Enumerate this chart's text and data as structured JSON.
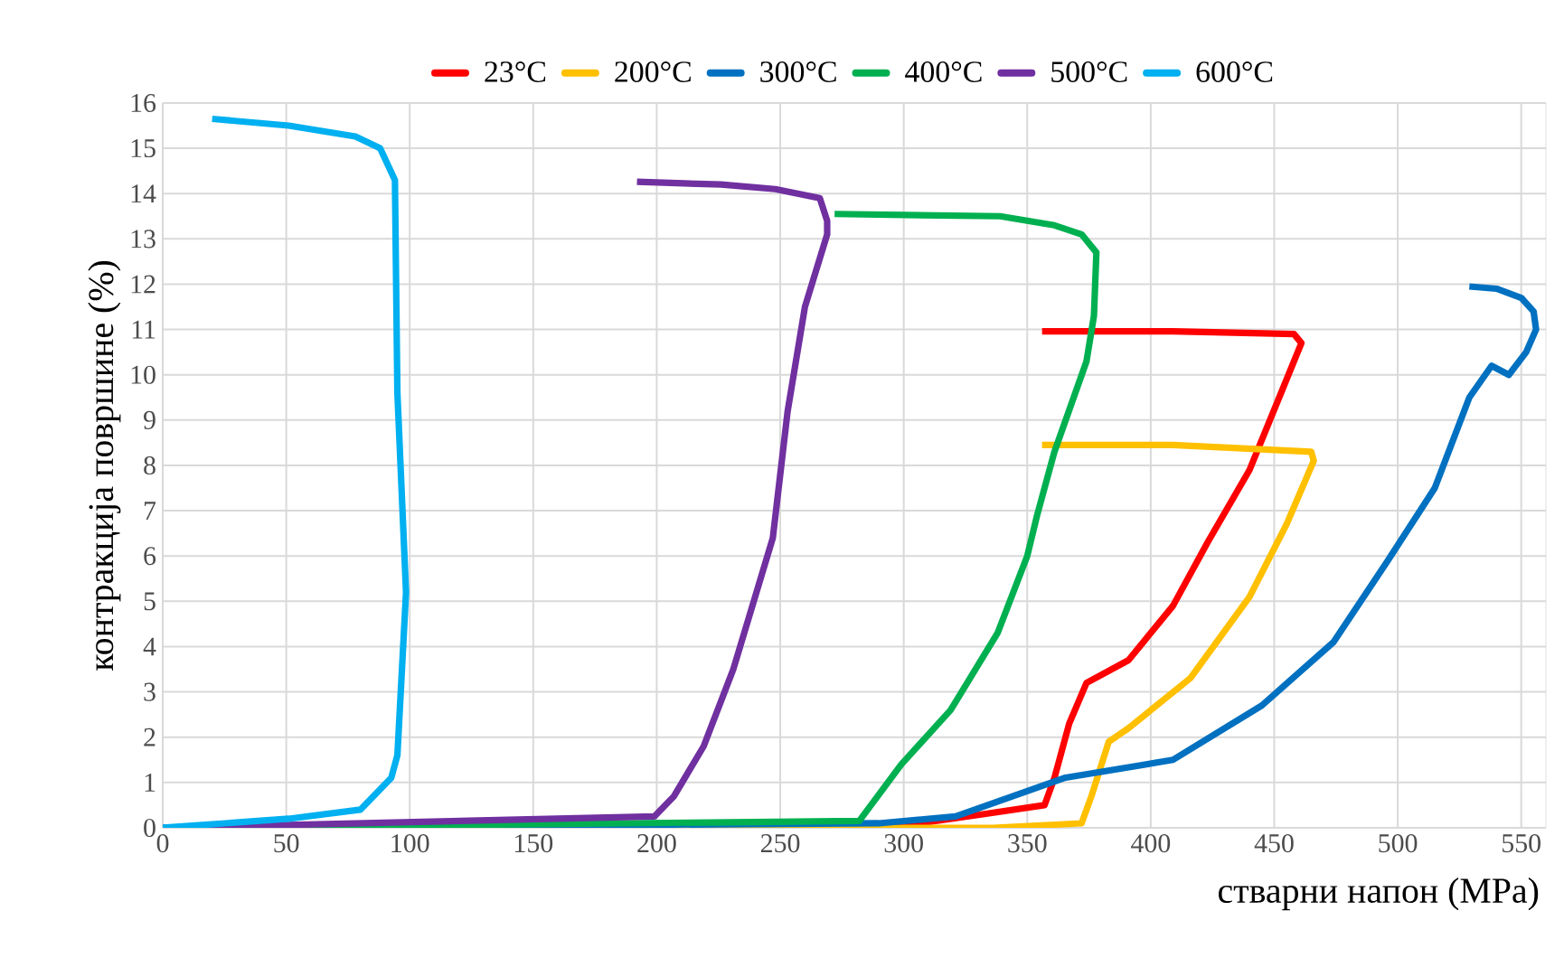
{
  "chart_data": {
    "type": "line",
    "xlabel": "стварни напон (MPa)",
    "ylabel": "контракција површине (%)",
    "xlim": [
      0,
      560
    ],
    "xticks": [
      0,
      50,
      100,
      150,
      200,
      250,
      300,
      350,
      400,
      450,
      500,
      550
    ],
    "ylim": [
      0,
      16
    ],
    "yticks": [
      0,
      1,
      2,
      3,
      4,
      5,
      6,
      7,
      8,
      9,
      10,
      11,
      12,
      13,
      14,
      15,
      16
    ],
    "grid": true,
    "legend": "top",
    "marker": "none",
    "line_style": "solid",
    "series": [
      {
        "name": "23°C",
        "color": "#ff0000",
        "x": [
          0,
          300,
          332,
          357,
          361,
          367,
          374,
          391,
          409,
          423,
          440,
          452,
          461,
          458,
          409,
          356
        ],
        "values": [
          0,
          0.05,
          0.3,
          0.5,
          1.1,
          2.3,
          3.2,
          3.7,
          4.9,
          6.3,
          7.9,
          9.5,
          10.7,
          10.9,
          10.96,
          10.96
        ]
      },
      {
        "name": "200°C",
        "color": "#ffc000",
        "x": [
          0,
          300,
          336,
          372,
          376,
          383,
          391,
          416,
          440,
          455,
          466,
          465,
          409,
          356
        ],
        "values": [
          0,
          0,
          0,
          0.1,
          0.7,
          1.9,
          2.2,
          3.3,
          5.1,
          6.7,
          8.1,
          8.3,
          8.45,
          8.45
        ]
      },
      {
        "name": "300°C",
        "color": "#0070c0",
        "x": [
          0,
          290,
          321,
          365,
          409,
          445,
          474,
          496,
          515,
          529,
          538,
          545,
          552,
          556,
          555,
          550,
          540,
          529
        ],
        "values": [
          0,
          0.1,
          0.25,
          1.1,
          1.5,
          2.7,
          4.1,
          5.9,
          7.5,
          9.5,
          10.2,
          10.0,
          10.5,
          11.0,
          11.4,
          11.7,
          11.9,
          11.95
        ]
      },
      {
        "name": "400°C",
        "color": "#00b050",
        "x": [
          0,
          282,
          299,
          319,
          338,
          350,
          354,
          361,
          374,
          377,
          378,
          372,
          361,
          339,
          272
        ],
        "values": [
          0,
          0.15,
          1.4,
          2.6,
          4.3,
          6.0,
          6.9,
          8.3,
          10.3,
          11.3,
          12.7,
          13.1,
          13.3,
          13.5,
          13.55
        ]
      },
      {
        "name": "500°C",
        "color": "#7030a0",
        "x": [
          0,
          199,
          207,
          219,
          231,
          247,
          253,
          260,
          269,
          269,
          266,
          248,
          226,
          192
        ],
        "values": [
          0,
          0.25,
          0.7,
          1.8,
          3.5,
          6.4,
          9.2,
          11.5,
          13.1,
          13.4,
          13.9,
          14.1,
          14.2,
          14.26
        ]
      },
      {
        "name": "600°C",
        "color": "#00b0f0",
        "x": [
          0,
          51,
          80,
          92.5,
          95,
          98.5,
          95,
          94,
          88,
          78,
          51,
          20
        ],
        "values": [
          0,
          0.2,
          0.4,
          1.1,
          1.6,
          5.2,
          9.6,
          14.3,
          15.0,
          15.26,
          15.5,
          15.65
        ]
      }
    ]
  }
}
